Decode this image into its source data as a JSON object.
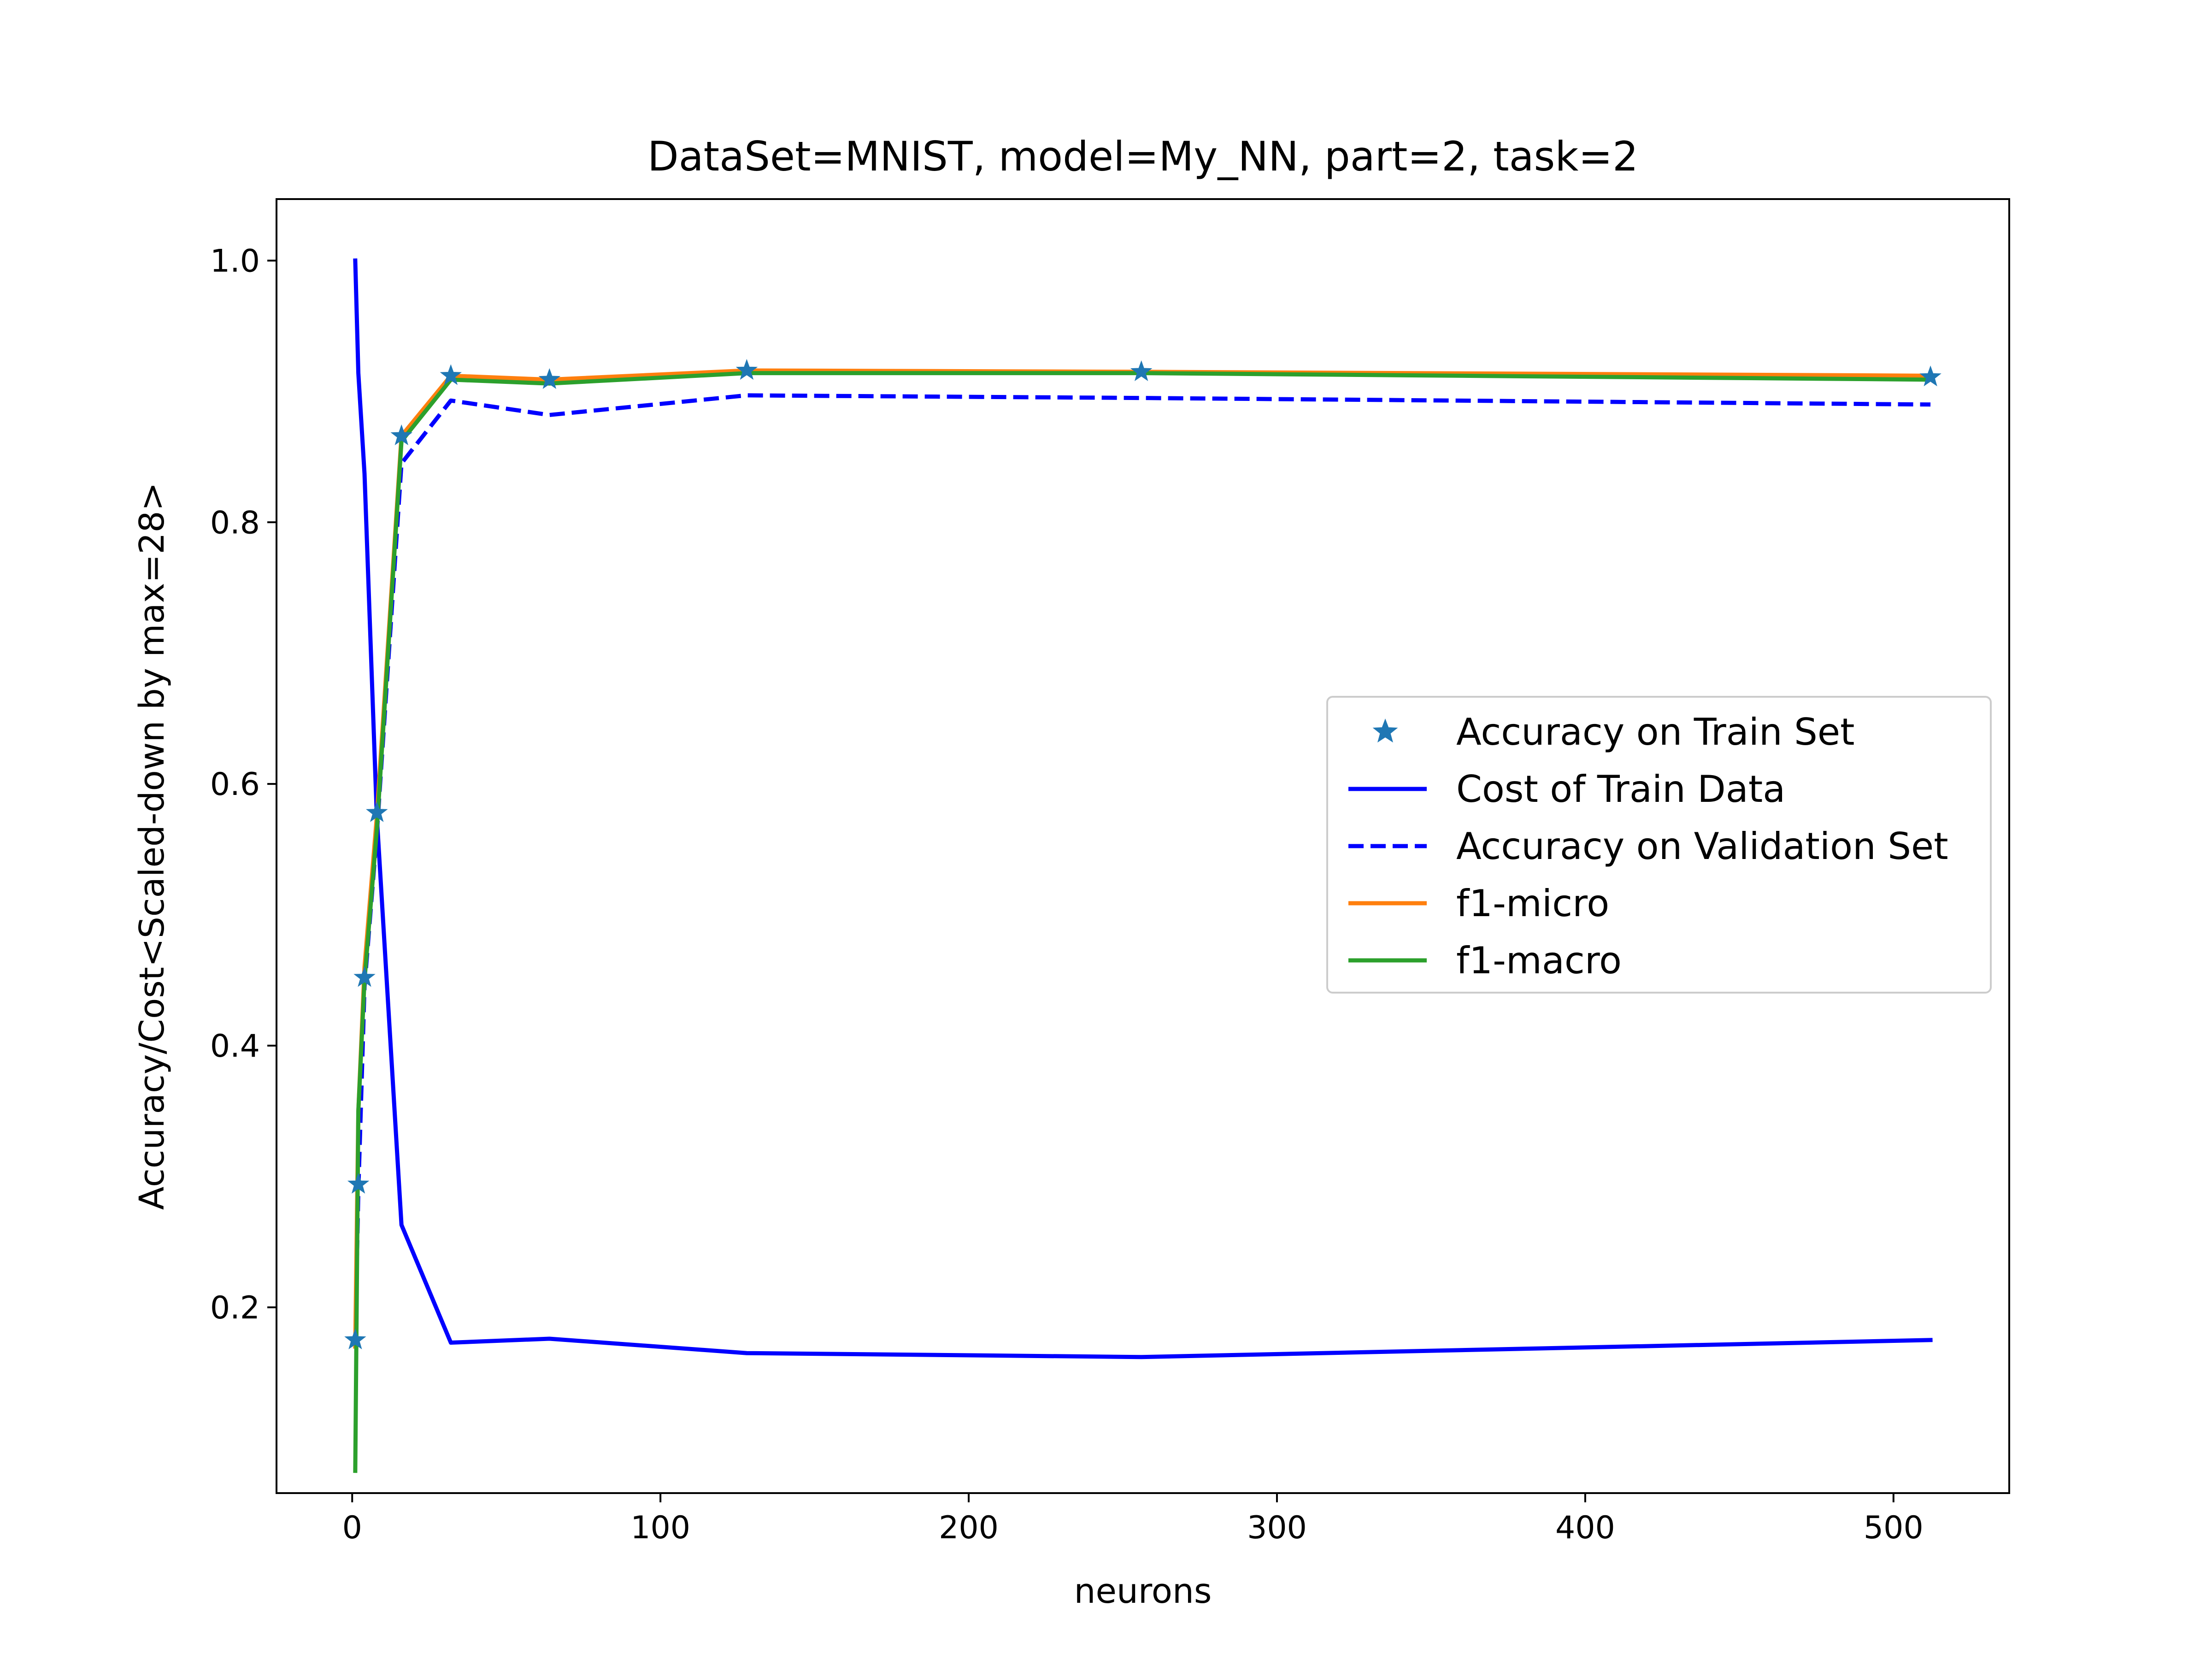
{
  "chart_data": {
    "type": "line",
    "title": "DataSet=MNIST, model=My_NN, part=2, task=2",
    "xlabel": "neurons",
    "ylabel": "Accuracy/Cost<Scaled-down by max=28>",
    "xlim": [
      -24.55,
      537.55
    ],
    "ylim": [
      0.058,
      1.047
    ],
    "xticks": [
      0,
      100,
      200,
      300,
      400,
      500
    ],
    "xtick_labels": [
      "0",
      "100",
      "200",
      "300",
      "400",
      "500"
    ],
    "yticks": [
      0.2,
      0.4,
      0.6,
      0.8,
      1.0
    ],
    "ytick_labels": [
      "0.2",
      "0.4",
      "0.6",
      "0.8",
      "1.0"
    ],
    "grid": false,
    "legend_position": "center-right",
    "x": [
      1,
      2,
      4,
      8,
      16,
      32,
      64,
      128,
      256,
      512
    ],
    "series": [
      {
        "name": "Accuracy on Train Set",
        "style": "marker-star",
        "color": "#1f77b4",
        "values": [
          0.175,
          0.294,
          0.452,
          0.578,
          0.866,
          0.912,
          0.909,
          0.916,
          0.915,
          0.911
        ]
      },
      {
        "name": "Cost of Train Data",
        "style": "solid",
        "color": "#0000ff",
        "values": [
          1.0,
          0.914,
          0.837,
          0.575,
          0.263,
          0.173,
          0.176,
          0.165,
          0.162,
          0.175
        ]
      },
      {
        "name": "Accuracy on Validation Set",
        "style": "dashed",
        "color": "#0000ff",
        "values": [
          0.172,
          0.289,
          0.445,
          0.562,
          0.845,
          0.893,
          0.882,
          0.897,
          0.895,
          0.89
        ]
      },
      {
        "name": "f1-micro",
        "style": "solid",
        "color": "#ff7f0e",
        "values": [
          0.17,
          0.35,
          0.46,
          0.575,
          0.866,
          0.912,
          0.909,
          0.916,
          0.915,
          0.912
        ]
      },
      {
        "name": "f1-macro",
        "style": "solid",
        "color": "#2ca02c",
        "values": [
          0.075,
          0.35,
          0.45,
          0.565,
          0.862,
          0.909,
          0.906,
          0.914,
          0.914,
          0.909
        ]
      }
    ]
  }
}
